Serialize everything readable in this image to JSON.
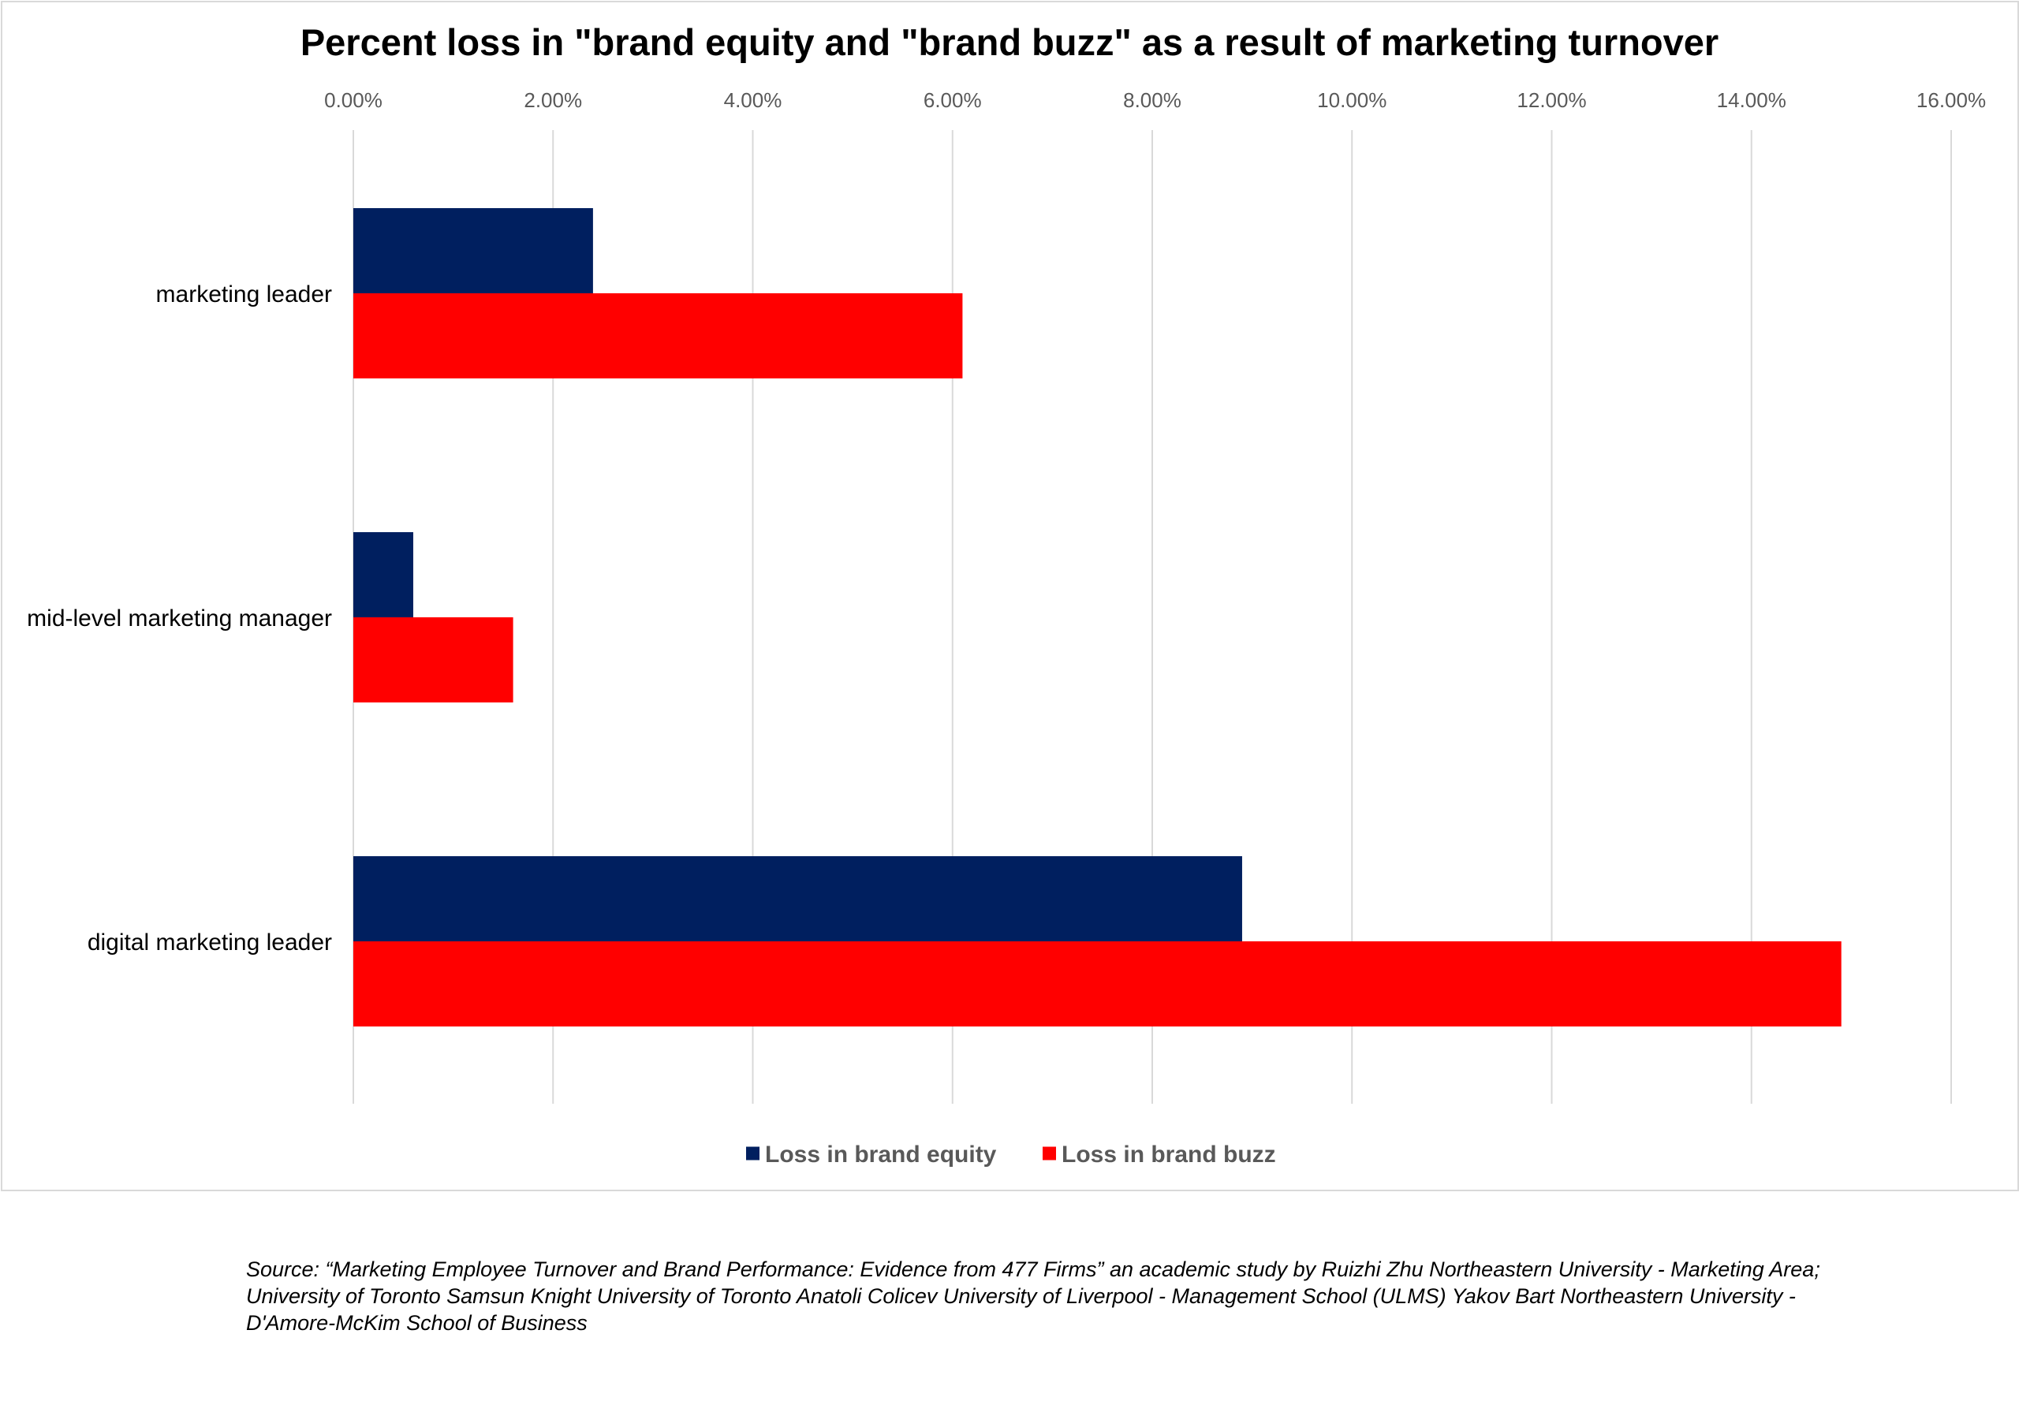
{
  "chart_data": {
    "type": "bar",
    "orientation": "horizontal",
    "title": "Percent loss in \"brand equity and \"brand buzz\" as a result of marketing turnover",
    "categories": [
      "marketing leader",
      "mid-level marketing manager",
      "digital marketing leader"
    ],
    "series": [
      {
        "name": "Loss in brand equity",
        "color": "#001f5f",
        "values": [
          0.024,
          0.006,
          0.089
        ]
      },
      {
        "name": "Loss in brand buzz",
        "color": "#ff0000",
        "values": [
          0.061,
          0.016,
          0.149
        ]
      }
    ],
    "xlim": [
      0,
      0.16
    ],
    "ticks": [
      0,
      0.02,
      0.04,
      0.06,
      0.08,
      0.1,
      0.12,
      0.14,
      0.16
    ],
    "tick_labels": [
      "0.00%",
      "2.00%",
      "4.00%",
      "6.00%",
      "8.00%",
      "10.00%",
      "12.00%",
      "14.00%",
      "16.00%"
    ],
    "x_axis_position": "top",
    "grid": true,
    "legend_position": "bottom"
  },
  "source_note": "Source: “Marketing Employee Turnover and Brand Performance: Evidence from 477 Firms” an academic study by Ruizhi Zhu Northeastern University - Marketing Area; University of Toronto Samsun Knight University of Toronto Anatoli Colicev University of Liverpool - Management School (ULMS) Yakov Bart Northeastern University - D'Amore-McKim School of Business"
}
